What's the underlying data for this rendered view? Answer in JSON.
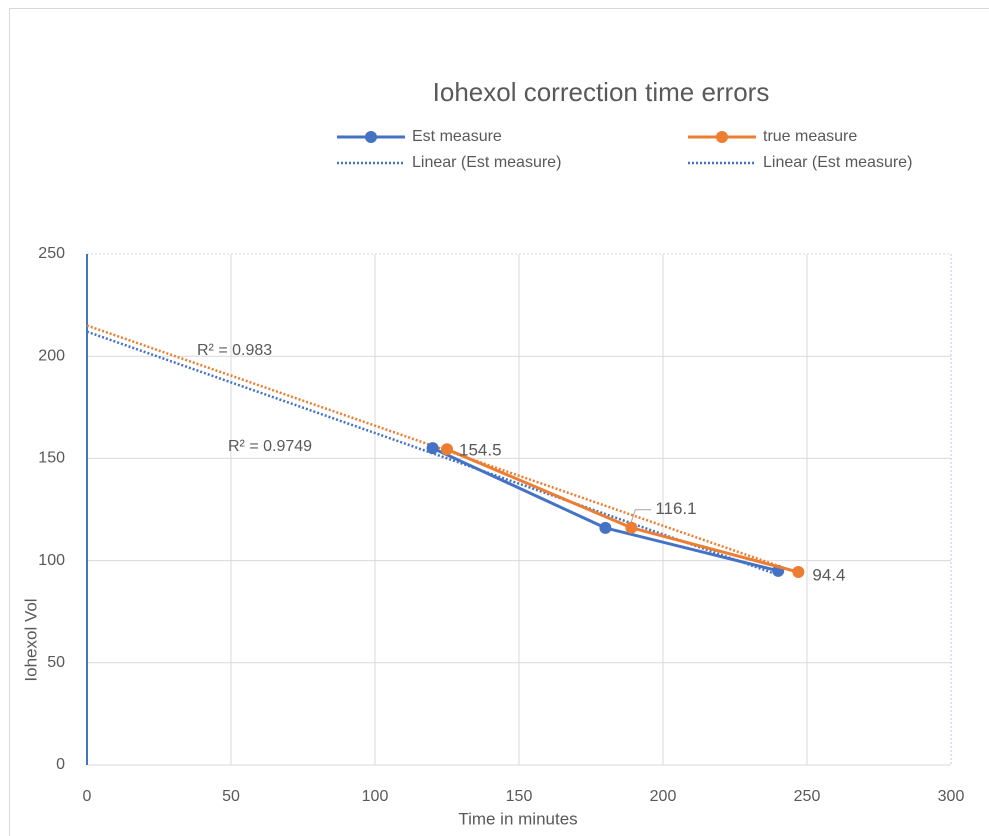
{
  "chart_data": {
    "type": "line",
    "title": "Iohexol correction time errors",
    "xlabel": "Time in minutes",
    "ylabel": "Iohexol Vol",
    "xlim": [
      0,
      300
    ],
    "xticks": [
      0,
      50,
      100,
      150,
      200,
      250,
      300
    ],
    "ylim": [
      0,
      250
    ],
    "yticks": [
      0,
      50,
      100,
      150,
      200,
      250
    ],
    "grid": true,
    "legend": "top",
    "series": [
      {
        "name": "Est measure",
        "color": "#4472c4",
        "x": [
          120,
          180,
          240
        ],
        "values": [
          155,
          116,
          95
        ]
      },
      {
        "name": "true measure",
        "color": "#ed7d31",
        "x": [
          125,
          189,
          247
        ],
        "values": [
          154.5,
          116.1,
          94.4
        ],
        "value_labels": [
          "154.5",
          "116.1",
          "94.4"
        ]
      }
    ],
    "trendlines": [
      {
        "name": "Linear (Est measure)",
        "color": "#4472c4",
        "x": [
          0,
          240
        ],
        "values": [
          212,
          93
        ],
        "r2_label": "R² = 0.9749"
      },
      {
        "name": "Linear (Est measure)",
        "color": "#ed7d31",
        "x": [
          0,
          247
        ],
        "values": [
          215,
          94
        ],
        "r2_label": "R² = 0.983"
      }
    ]
  }
}
